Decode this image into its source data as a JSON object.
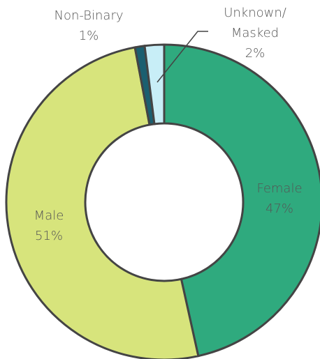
{
  "chart_data": {
    "type": "donut",
    "categories": [
      "Female",
      "Male",
      "Non-Binary",
      "Unknown/\nMasked"
    ],
    "values": [
      47,
      51,
      1,
      2
    ],
    "value_labels": [
      "47%",
      "51%",
      "1%",
      "2%"
    ],
    "colors": [
      "#2faa7e",
      "#d7e47c",
      "#1b5f70",
      "#c8eef7"
    ]
  }
}
